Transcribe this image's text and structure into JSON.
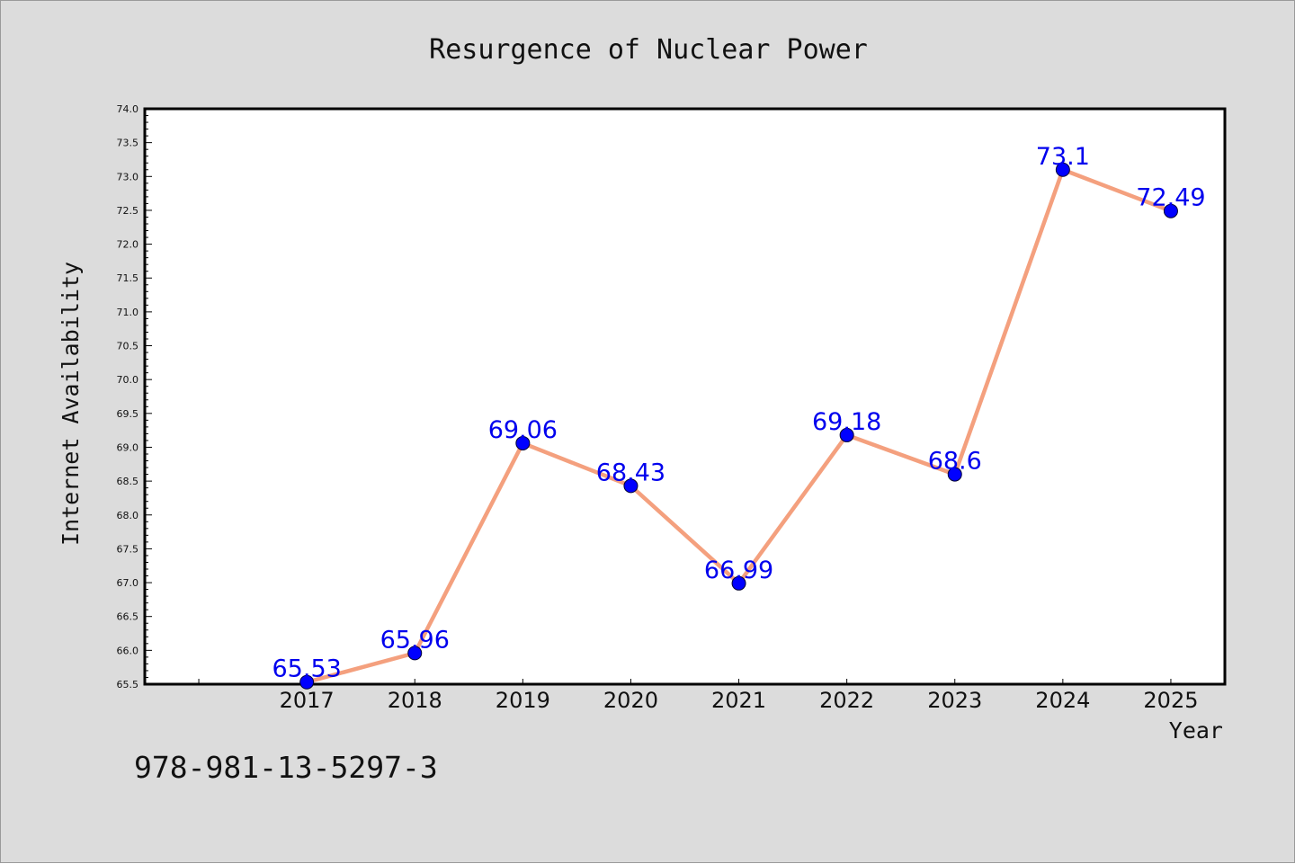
{
  "chart_data": {
    "type": "line",
    "title": "Resurgence of Nuclear Power",
    "xlabel": "Year",
    "ylabel": "Internet Availability",
    "categories": [
      "2017",
      "2018",
      "2019",
      "2020",
      "2021",
      "2022",
      "2023",
      "2024",
      "2025"
    ],
    "x": [
      2017,
      2018,
      2019,
      2020,
      2021,
      2022,
      2023,
      2024,
      2025
    ],
    "values": [
      65.53,
      65.96,
      69.06,
      68.43,
      66.99,
      69.18,
      68.6,
      73.1,
      72.49
    ],
    "data_labels": [
      "65.53",
      "65.96",
      "69.06",
      "68.43",
      "66.99",
      "69.18",
      "68.6",
      "73.1",
      "72.49"
    ],
    "ylim": [
      65.5,
      74.0
    ],
    "xlim": [
      2015.5,
      2025.5
    ],
    "yticks": [
      "65.5",
      "66.0",
      "66.5",
      "67.0",
      "67.5",
      "68.0",
      "68.5",
      "69.0",
      "69.5",
      "70.0",
      "70.5",
      "71.0",
      "71.5",
      "72.0",
      "72.5",
      "73.0",
      "73.5",
      "74.0"
    ],
    "grid": false,
    "line_color": "#f4a07e",
    "marker_color": "#0000ff",
    "label_color": "#0000ee",
    "background_color": "#dcdcdc",
    "plot_background_color": "#ffffff"
  },
  "footer_text": "978-981-13-5297-3"
}
